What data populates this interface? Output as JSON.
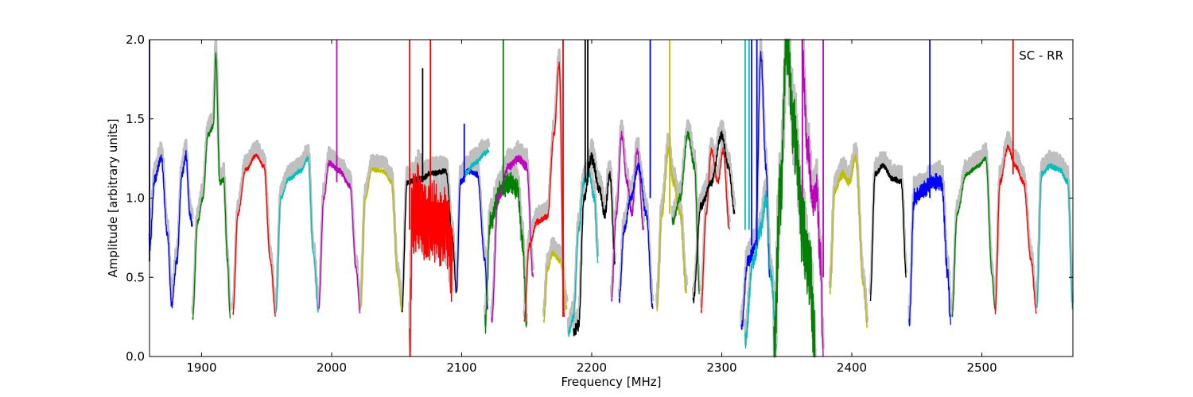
{
  "chart_data": {
    "type": "line",
    "title": "",
    "annotation": "SC - RR",
    "xlabel": "Frequency [MHz]",
    "ylabel": "Amplitude [arbitrary units]",
    "xlim": [
      1860,
      2570
    ],
    "ylim": [
      0.0,
      2.0
    ],
    "x_ticks": [
      "1900",
      "2000",
      "2100",
      "2200",
      "2300",
      "2400",
      "2500"
    ],
    "y_ticks": [
      "0.0",
      "0.5",
      "1.0",
      "1.5",
      "2.0"
    ],
    "grid": false,
    "legend": "none",
    "background_series_color": "#bfbfbf",
    "series": [
      {
        "color": "#0000ff",
        "points": [
          [
            1860,
            0.68
          ],
          [
            1864,
            1.12
          ],
          [
            1869,
            1.25
          ],
          [
            1874,
            0.75
          ],
          [
            1877,
            0.33
          ],
          [
            1881,
            0.6
          ],
          [
            1885,
            1.15
          ],
          [
            1888,
            1.27
          ],
          [
            1891,
            0.9
          ],
          [
            1893,
            0.82
          ]
        ],
        "noise": 0.03
      },
      {
        "color": "#008000",
        "points": [
          [
            1893,
            0.23
          ],
          [
            1897,
            0.85
          ],
          [
            1901,
            1.0
          ],
          [
            1905,
            1.4
          ],
          [
            1909,
            1.45
          ],
          [
            1911,
            1.9
          ],
          [
            1914,
            1.1
          ],
          [
            1917,
            1.12
          ],
          [
            1920,
            0.6
          ],
          [
            1922,
            0.24
          ]
        ],
        "noise": 0.02
      },
      {
        "color": "#ff0000",
        "points": [
          [
            1924,
            0.26
          ],
          [
            1928,
            0.9
          ],
          [
            1934,
            1.18
          ],
          [
            1942,
            1.27
          ],
          [
            1948,
            1.2
          ],
          [
            1953,
            0.6
          ],
          [
            1957,
            0.26
          ]
        ],
        "noise": 0.015
      },
      {
        "color": "#00bfbf",
        "points": [
          [
            1957,
            0.28
          ],
          [
            1961,
            1.0
          ],
          [
            1967,
            1.12
          ],
          [
            1976,
            1.17
          ],
          [
            1982,
            1.25
          ],
          [
            1986,
            0.65
          ],
          [
            1990,
            0.28
          ]
        ],
        "noise": 0.015
      },
      {
        "color": "#bf00bf",
        "points": [
          [
            1990,
            0.3
          ],
          [
            1994,
            1.0
          ],
          [
            1998,
            1.22
          ],
          [
            2006,
            1.17
          ],
          [
            2014,
            1.08
          ],
          [
            2019,
            0.55
          ],
          [
            2022,
            0.28
          ]
        ],
        "noise": 0.02
      },
      {
        "color": "#bfbf00",
        "points": [
          [
            2022,
            0.3
          ],
          [
            2026,
            1.0
          ],
          [
            2031,
            1.18
          ],
          [
            2040,
            1.17
          ],
          [
            2046,
            1.1
          ],
          [
            2051,
            0.5
          ],
          [
            2054,
            0.29
          ]
        ],
        "noise": 0.015
      },
      {
        "color": "#000000",
        "points": [
          [
            2054,
            0.28
          ],
          [
            2058,
            1.1
          ],
          [
            2068,
            1.12
          ],
          [
            2078,
            1.16
          ],
          [
            2088,
            1.17
          ],
          [
            2093,
            0.75
          ],
          [
            2096,
            0.4
          ]
        ],
        "noise": 0.02
      },
      {
        "color": "#ff0000",
        "points": [
          [
            2060,
            0.0
          ],
          [
            2062,
            0.9
          ],
          [
            2066,
            0.95
          ],
          [
            2075,
            0.85
          ],
          [
            2082,
            0.85
          ],
          [
            2088,
            0.82
          ],
          [
            2093,
            0.6
          ]
        ],
        "noise": 0.28
      },
      {
        "color": "#0000ff",
        "points": [
          [
            2096,
            0.4
          ],
          [
            2099,
            1.1
          ],
          [
            2105,
            1.17
          ],
          [
            2112,
            1.15
          ],
          [
            2118,
            0.6
          ],
          [
            2120,
            0.3
          ]
        ],
        "noise": 0.02
      },
      {
        "color": "#00bfbf",
        "points": [
          [
            2102,
            1.15
          ],
          [
            2110,
            1.22
          ],
          [
            2118,
            1.28
          ],
          [
            2121,
            1.3
          ]
        ],
        "noise": 0.02
      },
      {
        "color": "#008000",
        "points": [
          [
            2118,
            0.2
          ],
          [
            2122,
            0.85
          ],
          [
            2130,
            1.05
          ],
          [
            2138,
            1.1
          ],
          [
            2143,
            1.05
          ],
          [
            2147,
            0.7
          ],
          [
            2150,
            0.22
          ]
        ],
        "noise": 0.07
      },
      {
        "color": "#bf00bf",
        "points": [
          [
            2123,
            0.22
          ],
          [
            2128,
            1.0
          ],
          [
            2136,
            1.2
          ],
          [
            2144,
            1.25
          ],
          [
            2150,
            1.2
          ],
          [
            2155,
            0.5
          ]
        ],
        "noise": 0.03
      },
      {
        "color": "#ff0000",
        "points": [
          [
            2148,
            0.22
          ],
          [
            2152,
            0.7
          ],
          [
            2158,
            0.85
          ],
          [
            2166,
            0.88
          ],
          [
            2171,
            1.4
          ],
          [
            2175,
            1.85
          ],
          [
            2179,
            0.25
          ]
        ],
        "noise": 0.02
      },
      {
        "color": "#bfbf00",
        "points": [
          [
            2163,
            0.22
          ],
          [
            2166,
            0.55
          ],
          [
            2170,
            0.65
          ],
          [
            2176,
            0.6
          ],
          [
            2181,
            0.3
          ]
        ],
        "noise": 0.02
      },
      {
        "color": "#00bfbf",
        "points": [
          [
            2182,
            0.15
          ],
          [
            2186,
            0.25
          ],
          [
            2190,
            0.8
          ],
          [
            2194,
            1.1
          ],
          [
            2198,
            1.15
          ],
          [
            2202,
            1.0
          ],
          [
            2205,
            0.6
          ]
        ],
        "noise": 0.03
      },
      {
        "color": "#000000",
        "points": [
          [
            2186,
            0.15
          ],
          [
            2190,
            0.2
          ],
          [
            2194,
            1.0
          ],
          [
            2200,
            1.25
          ],
          [
            2206,
            1.05
          ],
          [
            2210,
            0.9
          ],
          [
            2214,
            1.15
          ],
          [
            2218,
            0.6
          ]
        ],
        "noise": 0.04
      },
      {
        "color": "#bf00bf",
        "points": [
          [
            2215,
            0.35
          ],
          [
            2219,
            0.9
          ],
          [
            2223,
            1.4
          ],
          [
            2227,
            1.1
          ],
          [
            2231,
            0.9
          ],
          [
            2235,
            1.3
          ],
          [
            2240,
            0.8
          ]
        ],
        "noise": 0.03
      },
      {
        "color": "#0000ff",
        "points": [
          [
            2221,
            0.35
          ],
          [
            2225,
            0.8
          ],
          [
            2230,
            1.0
          ],
          [
            2236,
            1.2
          ],
          [
            2242,
            0.9
          ],
          [
            2247,
            0.3
          ]
        ],
        "noise": 0.03
      },
      {
        "color": "#bfbf00",
        "points": [
          [
            2250,
            0.3
          ],
          [
            2254,
            0.9
          ],
          [
            2259,
            1.3
          ],
          [
            2263,
            1.1
          ],
          [
            2268,
            0.9
          ],
          [
            2273,
            0.4
          ]
        ],
        "noise": 0.03
      },
      {
        "color": "#008000",
        "points": [
          [
            2262,
            0.85
          ],
          [
            2268,
            1.0
          ],
          [
            2274,
            1.4
          ],
          [
            2279,
            1.2
          ],
          [
            2283,
            0.4
          ]
        ],
        "noise": 0.03
      },
      {
        "color": "#ff0000",
        "points": [
          [
            2284,
            0.28
          ],
          [
            2288,
            0.9
          ],
          [
            2292,
            1.3
          ],
          [
            2297,
            1.1
          ],
          [
            2301,
            1.3
          ],
          [
            2306,
            0.8
          ]
        ],
        "noise": 0.02
      },
      {
        "color": "#000000",
        "points": [
          [
            2278,
            0.35
          ],
          [
            2284,
            0.95
          ],
          [
            2292,
            1.1
          ],
          [
            2300,
            1.4
          ],
          [
            2305,
            1.2
          ],
          [
            2310,
            0.9
          ]
        ],
        "noise": 0.03
      },
      {
        "color": "#0000ff",
        "points": [
          [
            2315,
            0.18
          ],
          [
            2320,
            0.6
          ],
          [
            2326,
            0.7
          ],
          [
            2330,
            1.9
          ],
          [
            2334,
            1.2
          ],
          [
            2337,
            0.5
          ]
        ],
        "noise": 0.04
      },
      {
        "color": "#00bfbf",
        "points": [
          [
            2318,
            0.1
          ],
          [
            2324,
            0.6
          ],
          [
            2330,
            0.8
          ],
          [
            2334,
            1.0
          ],
          [
            2338,
            0.5
          ],
          [
            2342,
            0.08
          ]
        ],
        "noise": 0.06
      },
      {
        "color": "#008000",
        "points": [
          [
            2340,
            0.05
          ],
          [
            2345,
            1.0
          ],
          [
            2350,
            2.0
          ],
          [
            2356,
            1.4
          ],
          [
            2362,
            0.8
          ],
          [
            2368,
            0.5
          ],
          [
            2372,
            0.0
          ]
        ],
        "noise": 0.25
      },
      {
        "color": "#bf00bf",
        "points": [
          [
            2362,
            1.9
          ],
          [
            2366,
            1.3
          ],
          [
            2370,
            1.0
          ],
          [
            2373,
            1.05
          ],
          [
            2376,
            0.6
          ],
          [
            2378,
            0.0
          ]
        ],
        "noise": 0.12
      },
      {
        "color": "#bfbf00",
        "points": [
          [
            2383,
            0.4
          ],
          [
            2387,
            1.05
          ],
          [
            2393,
            1.15
          ],
          [
            2398,
            1.1
          ],
          [
            2403,
            1.25
          ],
          [
            2409,
            0.45
          ],
          [
            2412,
            0.2
          ]
        ],
        "noise": 0.03
      },
      {
        "color": "#000000",
        "points": [
          [
            2414,
            0.35
          ],
          [
            2418,
            1.15
          ],
          [
            2424,
            1.2
          ],
          [
            2432,
            1.12
          ],
          [
            2438,
            1.1
          ],
          [
            2442,
            0.5
          ]
        ],
        "noise": 0.02
      },
      {
        "color": "#0000ff",
        "points": [
          [
            2444,
            0.2
          ],
          [
            2448,
            1.0
          ],
          [
            2455,
            1.05
          ],
          [
            2462,
            1.1
          ],
          [
            2469,
            1.1
          ],
          [
            2474,
            0.5
          ],
          [
            2476,
            0.2
          ]
        ],
        "noise": 0.06
      },
      {
        "color": "#008000",
        "points": [
          [
            2477,
            0.25
          ],
          [
            2481,
            0.9
          ],
          [
            2488,
            1.15
          ],
          [
            2497,
            1.2
          ],
          [
            2503,
            1.25
          ],
          [
            2508,
            0.5
          ],
          [
            2510,
            0.3
          ]
        ],
        "noise": 0.015
      },
      {
        "color": "#ff0000",
        "points": [
          [
            2510,
            0.26
          ],
          [
            2514,
            1.1
          ],
          [
            2520,
            1.32
          ],
          [
            2526,
            1.2
          ],
          [
            2532,
            1.1
          ],
          [
            2538,
            0.6
          ],
          [
            2542,
            0.28
          ]
        ],
        "noise": 0.02
      },
      {
        "color": "#00bfbf",
        "points": [
          [
            2542,
            0.3
          ],
          [
            2546,
            1.15
          ],
          [
            2552,
            1.2
          ],
          [
            2560,
            1.18
          ],
          [
            2566,
            1.1
          ],
          [
            2570,
            0.3
          ]
        ],
        "noise": 0.02
      }
    ],
    "spikes": [
      {
        "color": "#0000ff",
        "x": 1860,
        "y0": 0.6,
        "y1": 2.0
      },
      {
        "color": "#bf00bf",
        "x": 2004,
        "y0": 1.1,
        "y1": 2.0
      },
      {
        "color": "#ff0000",
        "x": 2060,
        "y0": 0.8,
        "y1": 2.0
      },
      {
        "color": "#ff0000",
        "x": 2076,
        "y0": 0.8,
        "y1": 2.0
      },
      {
        "color": "#000000",
        "x": 2070,
        "y0": 1.1,
        "y1": 1.82
      },
      {
        "color": "#0000ff",
        "x": 2102,
        "y0": 1.1,
        "y1": 1.47
      },
      {
        "color": "#008000",
        "x": 2132,
        "y0": 1.05,
        "y1": 2.0
      },
      {
        "color": "#ff0000",
        "x": 2178,
        "y0": 0.25,
        "y1": 2.0
      },
      {
        "color": "#000000",
        "x": 2195,
        "y0": 1.1,
        "y1": 2.0
      },
      {
        "color": "#000000",
        "x": 2197,
        "y0": 1.1,
        "y1": 2.0
      },
      {
        "color": "#0000ff",
        "x": 2245,
        "y0": 1.0,
        "y1": 2.0
      },
      {
        "color": "#bfbf00",
        "x": 2260,
        "y0": 0.9,
        "y1": 2.0
      },
      {
        "color": "#00bfbf",
        "x": 2318,
        "y0": 0.8,
        "y1": 2.0
      },
      {
        "color": "#00bfbf",
        "x": 2321,
        "y0": 0.8,
        "y1": 2.0
      },
      {
        "color": "#0000ff",
        "x": 2323,
        "y0": 0.7,
        "y1": 2.0
      },
      {
        "color": "#0000ff",
        "x": 2327,
        "y0": 0.7,
        "y1": 2.0
      },
      {
        "color": "#bf00bf",
        "x": 2362,
        "y0": 1.0,
        "y1": 2.0
      },
      {
        "color": "#bf00bf",
        "x": 2378,
        "y0": 0.5,
        "y1": 2.0
      },
      {
        "color": "#0000ff",
        "x": 2460,
        "y0": 1.0,
        "y1": 2.0
      },
      {
        "color": "#ff0000",
        "x": 2524,
        "y0": 1.15,
        "y1": 2.0
      }
    ]
  }
}
